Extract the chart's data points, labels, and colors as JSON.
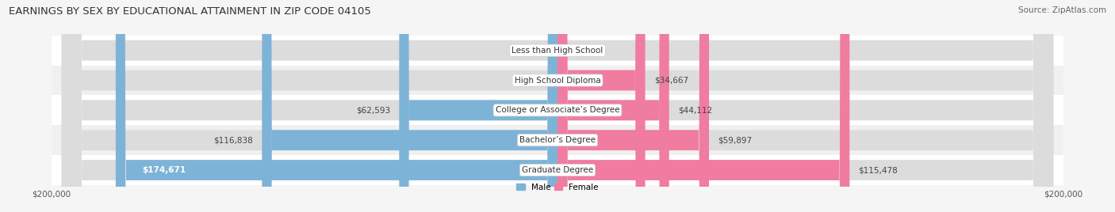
{
  "title": "EARNINGS BY SEX BY EDUCATIONAL ATTAINMENT IN ZIP CODE 04105",
  "source": "Source: ZipAtlas.com",
  "categories": [
    "Less than High School",
    "High School Diploma",
    "College or Associate’s Degree",
    "Bachelor’s Degree",
    "Graduate Degree"
  ],
  "male_values": [
    0,
    0,
    62593,
    116838,
    174671
  ],
  "female_values": [
    0,
    34667,
    44112,
    59897,
    115478
  ],
  "male_color": "#7EB3D8",
  "female_color": "#F07CA0",
  "male_label": "Male",
  "female_label": "Female",
  "axis_min": -200000,
  "axis_max": 200000,
  "row_colors": [
    "#efefef",
    "#e8e8e8"
  ],
  "bar_bg_color": "#e0e0e0",
  "title_fontsize": 9.5,
  "source_fontsize": 7.5,
  "label_fontsize": 7.5,
  "tick_fontsize": 7.5,
  "value_fontsize": 7.5
}
